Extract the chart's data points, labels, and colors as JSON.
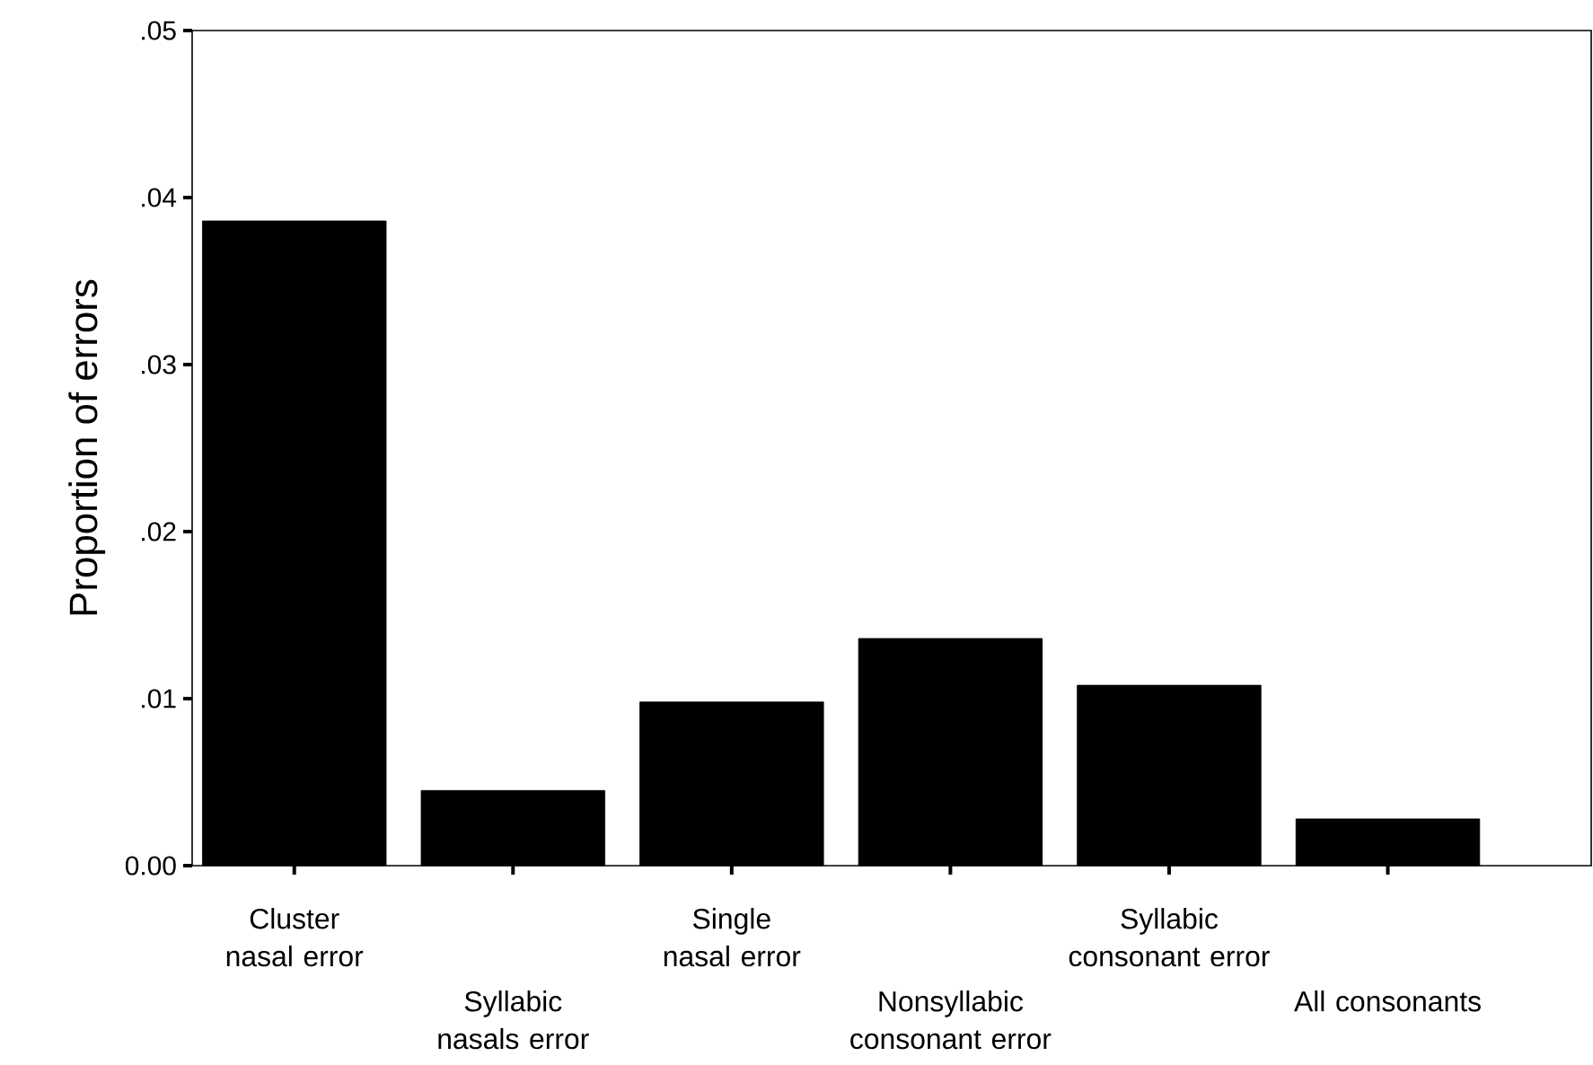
{
  "chart_data": {
    "type": "bar",
    "ylabel": "Proportion of errors",
    "categories": [
      "Cluster nasal error",
      "Syllabic nasals error",
      "Single nasal error",
      "Nonsyllabic consonant error",
      "Syllabic consonant error",
      "All consonants"
    ],
    "values": [
      0.0386,
      0.0045,
      0.0098,
      0.0136,
      0.0108,
      0.0028
    ],
    "color": "#000000",
    "ylim": [
      0,
      0.05
    ],
    "yticks": [
      {
        "value": 0,
        "label": "0.00"
      },
      {
        "value": 0.01,
        "label": ".01"
      },
      {
        "value": 0.02,
        "label": ".02"
      },
      {
        "value": 0.03,
        "label": ".03"
      },
      {
        "value": 0.04,
        "label": ".04"
      },
      {
        "value": 0.05,
        "label": ".05"
      }
    ],
    "grid": false
  }
}
